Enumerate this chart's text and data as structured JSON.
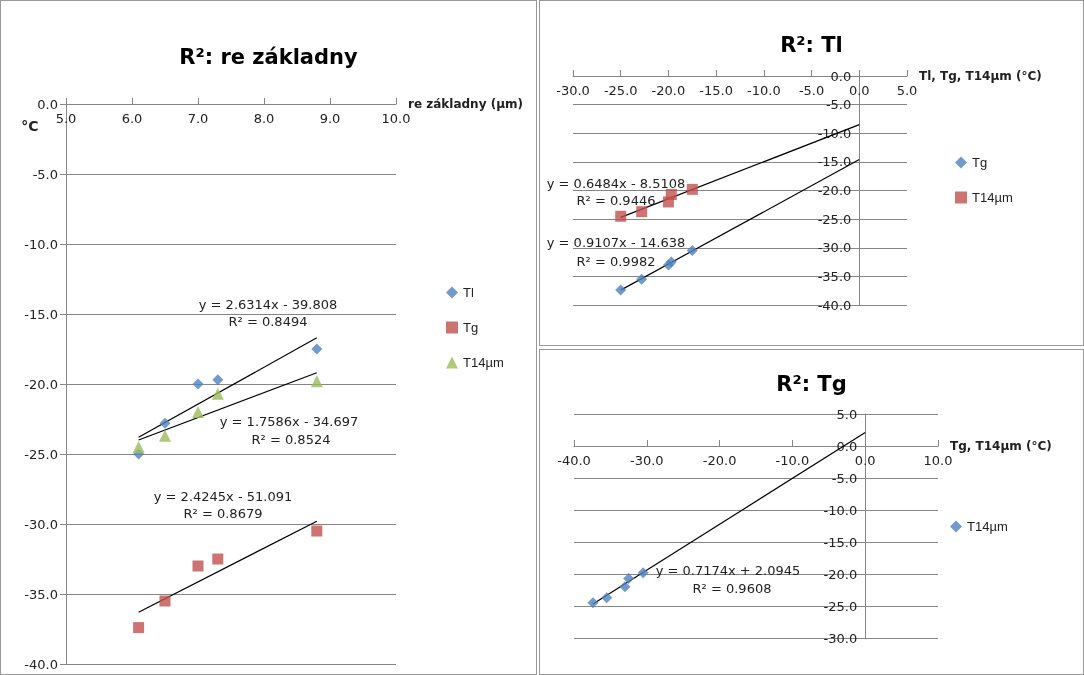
{
  "chart_data": [
    {
      "type": "scatter",
      "title": "R²: re základny",
      "xlabel": "re základny (µm)",
      "ylabel": "°C",
      "xlim": [
        5,
        10
      ],
      "ylim": [
        -40,
        0
      ],
      "xticks": [
        {
          "value": 5,
          "label": "5.0"
        },
        {
          "value": 6,
          "label": "6.0"
        },
        {
          "value": 7,
          "label": "7.0"
        },
        {
          "value": 8,
          "label": "8.0"
        },
        {
          "value": 9,
          "label": "9.0"
        },
        {
          "value": 10,
          "label": "10.0"
        }
      ],
      "yticks": [
        {
          "value": 0,
          "label": "0.0"
        },
        {
          "value": -5,
          "label": "-5.0"
        },
        {
          "value": -10,
          "label": "-10.0"
        },
        {
          "value": -15,
          "label": "-15.0"
        },
        {
          "value": -20,
          "label": "-20.0"
        },
        {
          "value": -25,
          "label": "-25.0"
        },
        {
          "value": -30,
          "label": "-30.0"
        },
        {
          "value": -35,
          "label": "-35.0"
        },
        {
          "value": -40,
          "label": "-40.0"
        }
      ],
      "grid": "y",
      "legend": "right",
      "series": [
        {
          "name": "Tl",
          "color": "#4f81bd",
          "marker": "diamond",
          "x": [
            6.1,
            6.5,
            7.0,
            7.3,
            8.8
          ],
          "values": [
            -25.0,
            -22.8,
            -20.0,
            -19.7,
            -17.5
          ]
        },
        {
          "name": "Tg",
          "color": "#c0504d",
          "marker": "square",
          "x": [
            6.1,
            6.5,
            7.0,
            7.3,
            8.8
          ],
          "values": [
            -37.4,
            -35.5,
            -33.0,
            -32.5,
            -30.5
          ]
        },
        {
          "name": "T14µm",
          "color": "#9bbb59",
          "marker": "triangle",
          "x": [
            6.1,
            6.5,
            7.0,
            7.3,
            8.8
          ],
          "values": [
            -24.5,
            -23.7,
            -22.0,
            -20.7,
            -19.8
          ]
        },
        {
          "type": "line",
          "color": "#000000",
          "marker": "none",
          "x": [
            6.1,
            8.8
          ],
          "values": [
            -23.8,
            -16.7
          ]
        },
        {
          "type": "line",
          "color": "#000000",
          "marker": "none",
          "x": [
            6.1,
            8.8
          ],
          "values": [
            -24.0,
            -19.2
          ]
        },
        {
          "type": "line",
          "color": "#000000",
          "marker": "none",
          "x": [
            6.1,
            8.8
          ],
          "values": [
            -36.3,
            -29.8
          ]
        }
      ],
      "annotations": [
        "y = 2.6314x - 39.808",
        "R² = 0.8494",
        "y = 1.7586x - 34.697",
        "R² = 0.8524",
        "y = 2.4245x - 51.091",
        "R² = 0.8679"
      ]
    },
    {
      "type": "scatter",
      "title": "R²: Tl",
      "xlabel": "Tl, Tg, T14µm (°C)",
      "xlim": [
        -30,
        5
      ],
      "ylim": [
        -40,
        0
      ],
      "xticks": [
        {
          "value": -30,
          "label": "-30.0"
        },
        {
          "value": -25,
          "label": "-25.0"
        },
        {
          "value": -20,
          "label": "-20.0"
        },
        {
          "value": -15,
          "label": "-15.0"
        },
        {
          "value": -10,
          "label": "-10.0"
        },
        {
          "value": -5,
          "label": "-5.0"
        },
        {
          "value": 0,
          "label": "0.0"
        },
        {
          "value": 5,
          "label": "5.0"
        }
      ],
      "yticks": [
        {
          "value": 0,
          "label": "0.0"
        },
        {
          "value": -5,
          "label": "-5.0"
        },
        {
          "value": -10,
          "label": "-10.0"
        },
        {
          "value": -15,
          "label": "-15.0"
        },
        {
          "value": -20,
          "label": "-20.0"
        },
        {
          "value": -25,
          "label": "-25.0"
        },
        {
          "value": -30,
          "label": "-30.0"
        },
        {
          "value": -35,
          "label": "-35.0"
        },
        {
          "value": -40,
          "label": "-40.0"
        }
      ],
      "grid": "y",
      "legend": "right",
      "series": [
        {
          "name": "Tg",
          "color": "#4f81bd",
          "marker": "diamond",
          "x": [
            -25.0,
            -22.8,
            -20.0,
            -19.7,
            -17.5
          ],
          "values": [
            -37.4,
            -35.5,
            -33.0,
            -32.5,
            -30.5
          ]
        },
        {
          "name": "T14µm",
          "color": "#c0504d",
          "marker": "square",
          "x": [
            -25.0,
            -22.8,
            -20.0,
            -19.7,
            -17.5
          ],
          "values": [
            -24.5,
            -23.7,
            -22.0,
            -20.7,
            -19.8
          ]
        },
        {
          "type": "line",
          "color": "#000000",
          "marker": "none",
          "x": [
            -25,
            0
          ],
          "values": [
            -37.4,
            -14.6
          ]
        },
        {
          "type": "line",
          "color": "#000000",
          "marker": "none",
          "x": [
            -25,
            0
          ],
          "values": [
            -24.7,
            -8.5
          ]
        }
      ],
      "annotations": [
        "y = 0.6484x - 8.5108",
        "R² = 0.9446",
        "y = 0.9107x - 14.638",
        "R² = 0.9982"
      ]
    },
    {
      "type": "scatter",
      "title": "R²: Tg",
      "xlabel": "Tg, T14µm (°C)",
      "xlim": [
        -40,
        10
      ],
      "ylim": [
        -30,
        5
      ],
      "xticks": [
        {
          "value": -40,
          "label": "-40.0"
        },
        {
          "value": -30,
          "label": "-30.0"
        },
        {
          "value": -20,
          "label": "-20.0"
        },
        {
          "value": -10,
          "label": "-10.0"
        },
        {
          "value": 0,
          "label": "0.0"
        },
        {
          "value": 10,
          "label": "10.0"
        }
      ],
      "yticks": [
        {
          "value": 5,
          "label": "5.0"
        },
        {
          "value": 0,
          "label": "0.0"
        },
        {
          "value": -5,
          "label": "-5.0"
        },
        {
          "value": -10,
          "label": "-10.0"
        },
        {
          "value": -15,
          "label": "-15.0"
        },
        {
          "value": -20,
          "label": "-20.0"
        },
        {
          "value": -25,
          "label": "-25.0"
        },
        {
          "value": -30,
          "label": "-30.0"
        }
      ],
      "grid": "y",
      "legend": "right",
      "series": [
        {
          "name": "T14µm",
          "color": "#4f81bd",
          "marker": "diamond",
          "x": [
            -37.4,
            -35.5,
            -33.0,
            -32.5,
            -30.5
          ],
          "values": [
            -24.5,
            -23.7,
            -22.0,
            -20.7,
            -19.8
          ]
        },
        {
          "type": "line",
          "color": "#000000",
          "marker": "none",
          "x": [
            -37.4,
            0
          ],
          "values": [
            -24.7,
            2.1
          ]
        }
      ],
      "annotations": [
        "y = 0.7174x + 2.0945",
        "R² = 0.9608"
      ]
    }
  ]
}
